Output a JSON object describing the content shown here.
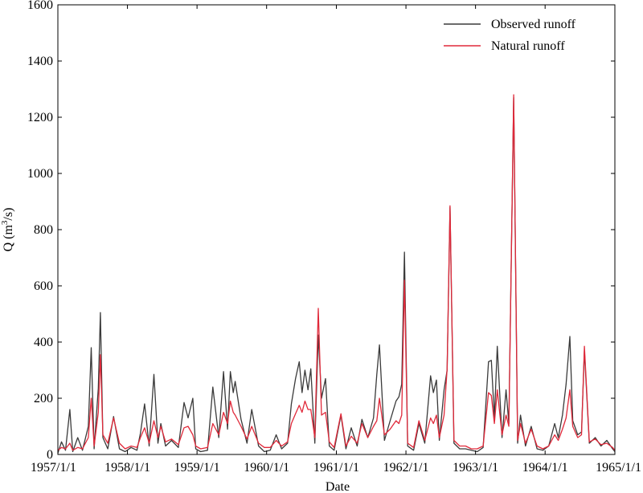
{
  "chart_data": {
    "type": "line",
    "title": "",
    "xlabel": "Date",
    "ylabel_main": "Q (m",
    "ylabel_sup": "3",
    "ylabel_tail": "/s)",
    "ylim": [
      0,
      1600
    ],
    "yticks": [
      0,
      200,
      400,
      600,
      800,
      1000,
      1200,
      1400,
      1600
    ],
    "xlim": [
      "1957-01-01",
      "1965-01-01"
    ],
    "xticks": [
      {
        "date": "1957-01-01",
        "label": "1957/1/1"
      },
      {
        "date": "1958-01-01",
        "label": "1958/1/1"
      },
      {
        "date": "1959-01-01",
        "label": "1959/1/1"
      },
      {
        "date": "1960-01-01",
        "label": "1960/1/1"
      },
      {
        "date": "1961-01-01",
        "label": "1961/1/1"
      },
      {
        "date": "1962-01-01",
        "label": "1962/1/1"
      },
      {
        "date": "1963-01-01",
        "label": "1963/1/1"
      },
      {
        "date": "1964-01-01",
        "label": "1964/1/1"
      },
      {
        "date": "1965-01-01",
        "label": "1965/1/1"
      }
    ],
    "legend_position": "top-right",
    "grid": false,
    "series": [
      {
        "name": "Observed runoff",
        "color": "#3a3a3a",
        "points": [
          [
            "1957-01-01",
            5
          ],
          [
            "1957-01-20",
            45
          ],
          [
            "1957-02-10",
            15
          ],
          [
            "1957-03-05",
            160
          ],
          [
            "1957-03-20",
            10
          ],
          [
            "1957-04-15",
            60
          ],
          [
            "1957-05-10",
            15
          ],
          [
            "1957-06-10",
            100
          ],
          [
            "1957-06-25",
            380
          ],
          [
            "1957-07-10",
            20
          ],
          [
            "1957-08-01",
            235
          ],
          [
            "1957-08-12",
            505
          ],
          [
            "1957-08-25",
            60
          ],
          [
            "1957-09-20",
            20
          ],
          [
            "1957-10-20",
            135
          ],
          [
            "1957-11-20",
            20
          ],
          [
            "1957-12-20",
            10
          ],
          [
            "1958-01-20",
            25
          ],
          [
            "1958-02-20",
            15
          ],
          [
            "1958-03-10",
            75
          ],
          [
            "1958-04-01",
            180
          ],
          [
            "1958-04-25",
            30
          ],
          [
            "1958-05-20",
            285
          ],
          [
            "1958-06-10",
            40
          ],
          [
            "1958-06-25",
            110
          ],
          [
            "1958-07-20",
            30
          ],
          [
            "1958-08-20",
            50
          ],
          [
            "1958-09-25",
            25
          ],
          [
            "1958-10-25",
            185
          ],
          [
            "1958-11-15",
            130
          ],
          [
            "1958-12-10",
            200
          ],
          [
            "1958-12-25",
            20
          ],
          [
            "1959-01-20",
            10
          ],
          [
            "1959-02-25",
            15
          ],
          [
            "1959-03-25",
            240
          ],
          [
            "1959-04-25",
            60
          ],
          [
            "1959-05-20",
            295
          ],
          [
            "1959-06-10",
            90
          ],
          [
            "1959-06-25",
            295
          ],
          [
            "1959-07-10",
            220
          ],
          [
            "1959-07-20",
            260
          ],
          [
            "1959-08-20",
            125
          ],
          [
            "1959-09-20",
            40
          ],
          [
            "1959-10-15",
            160
          ],
          [
            "1959-11-20",
            30
          ],
          [
            "1959-12-20",
            10
          ],
          [
            "1960-01-20",
            15
          ],
          [
            "1960-02-20",
            70
          ],
          [
            "1960-03-20",
            20
          ],
          [
            "1960-04-20",
            40
          ],
          [
            "1960-05-10",
            180
          ],
          [
            "1960-06-01",
            270
          ],
          [
            "1960-06-20",
            330
          ],
          [
            "1960-07-05",
            220
          ],
          [
            "1960-07-20",
            300
          ],
          [
            "1960-08-05",
            230
          ],
          [
            "1960-08-20",
            305
          ],
          [
            "1960-09-10",
            40
          ],
          [
            "1960-09-28",
            425
          ],
          [
            "1960-10-15",
            200
          ],
          [
            "1960-11-05",
            270
          ],
          [
            "1960-11-25",
            30
          ],
          [
            "1960-12-20",
            15
          ],
          [
            "1961-01-25",
            140
          ],
          [
            "1961-02-20",
            20
          ],
          [
            "1961-03-20",
            95
          ],
          [
            "1961-04-20",
            30
          ],
          [
            "1961-05-15",
            125
          ],
          [
            "1961-06-15",
            60
          ],
          [
            "1961-07-15",
            130
          ],
          [
            "1961-08-01",
            285
          ],
          [
            "1961-08-15",
            390
          ],
          [
            "1961-09-10",
            50
          ],
          [
            "1961-10-10",
            120
          ],
          [
            "1961-11-10",
            190
          ],
          [
            "1961-11-25",
            205
          ],
          [
            "1961-12-10",
            250
          ],
          [
            "1961-12-24",
            720
          ],
          [
            "1962-01-10",
            30
          ],
          [
            "1962-02-10",
            15
          ],
          [
            "1962-03-10",
            110
          ],
          [
            "1962-04-10",
            40
          ],
          [
            "1962-05-10",
            280
          ],
          [
            "1962-05-25",
            220
          ],
          [
            "1962-06-10",
            265
          ],
          [
            "1962-06-25",
            50
          ],
          [
            "1962-07-20",
            230
          ],
          [
            "1962-08-05",
            300
          ],
          [
            "1962-08-20",
            880
          ],
          [
            "1962-09-10",
            40
          ],
          [
            "1962-10-10",
            20
          ],
          [
            "1962-11-10",
            20
          ],
          [
            "1962-12-10",
            15
          ],
          [
            "1963-01-10",
            10
          ],
          [
            "1963-02-10",
            25
          ],
          [
            "1963-03-10",
            330
          ],
          [
            "1963-03-25",
            335
          ],
          [
            "1963-04-10",
            130
          ],
          [
            "1963-04-25",
            385
          ],
          [
            "1963-05-20",
            60
          ],
          [
            "1963-06-10",
            230
          ],
          [
            "1963-06-25",
            110
          ],
          [
            "1963-07-20",
            1270
          ],
          [
            "1963-08-10",
            40
          ],
          [
            "1963-08-25",
            140
          ],
          [
            "1963-09-20",
            30
          ],
          [
            "1963-10-20",
            100
          ],
          [
            "1963-11-20",
            20
          ],
          [
            "1963-12-20",
            15
          ],
          [
            "1964-01-20",
            30
          ],
          [
            "1964-02-20",
            110
          ],
          [
            "1964-03-10",
            60
          ],
          [
            "1964-04-01",
            140
          ],
          [
            "1964-04-20",
            250
          ],
          [
            "1964-05-10",
            420
          ],
          [
            "1964-05-25",
            120
          ],
          [
            "1964-06-20",
            70
          ],
          [
            "1964-07-10",
            80
          ],
          [
            "1964-07-25",
            370
          ],
          [
            "1964-08-20",
            40
          ],
          [
            "1964-09-20",
            60
          ],
          [
            "1964-10-20",
            30
          ],
          [
            "1964-11-20",
            50
          ],
          [
            "1964-12-20",
            20
          ],
          [
            "1965-01-01",
            10
          ]
        ]
      },
      {
        "name": "Natural runoff",
        "color": "#e0293a",
        "points": [
          [
            "1957-01-01",
            15
          ],
          [
            "1957-01-20",
            25
          ],
          [
            "1957-02-10",
            20
          ],
          [
            "1957-03-05",
            40
          ],
          [
            "1957-03-20",
            15
          ],
          [
            "1957-04-15",
            25
          ],
          [
            "1957-05-10",
            20
          ],
          [
            "1957-06-10",
            60
          ],
          [
            "1957-06-25",
            200
          ],
          [
            "1957-07-10",
            30
          ],
          [
            "1957-08-01",
            150
          ],
          [
            "1957-08-12",
            355
          ],
          [
            "1957-08-25",
            70
          ],
          [
            "1957-09-20",
            40
          ],
          [
            "1957-10-20",
            130
          ],
          [
            "1957-11-20",
            40
          ],
          [
            "1957-12-20",
            20
          ],
          [
            "1958-01-20",
            30
          ],
          [
            "1958-02-20",
            25
          ],
          [
            "1958-03-10",
            60
          ],
          [
            "1958-04-01",
            95
          ],
          [
            "1958-04-25",
            40
          ],
          [
            "1958-05-20",
            120
          ],
          [
            "1958-06-10",
            60
          ],
          [
            "1958-06-25",
            100
          ],
          [
            "1958-07-20",
            45
          ],
          [
            "1958-08-20",
            55
          ],
          [
            "1958-09-25",
            35
          ],
          [
            "1958-10-25",
            95
          ],
          [
            "1958-11-15",
            100
          ],
          [
            "1958-12-10",
            70
          ],
          [
            "1958-12-25",
            30
          ],
          [
            "1959-01-20",
            20
          ],
          [
            "1959-02-25",
            25
          ],
          [
            "1959-03-25",
            110
          ],
          [
            "1959-04-25",
            70
          ],
          [
            "1959-05-20",
            150
          ],
          [
            "1959-06-10",
            110
          ],
          [
            "1959-06-25",
            190
          ],
          [
            "1959-07-10",
            150
          ],
          [
            "1959-07-20",
            140
          ],
          [
            "1959-08-20",
            100
          ],
          [
            "1959-09-20",
            55
          ],
          [
            "1959-10-15",
            100
          ],
          [
            "1959-11-20",
            40
          ],
          [
            "1959-12-20",
            25
          ],
          [
            "1960-01-20",
            25
          ],
          [
            "1960-02-20",
            50
          ],
          [
            "1960-03-20",
            30
          ],
          [
            "1960-04-20",
            45
          ],
          [
            "1960-05-10",
            110
          ],
          [
            "1960-06-01",
            145
          ],
          [
            "1960-06-20",
            175
          ],
          [
            "1960-07-05",
            150
          ],
          [
            "1960-07-20",
            190
          ],
          [
            "1960-08-05",
            160
          ],
          [
            "1960-08-20",
            160
          ],
          [
            "1960-09-10",
            60
          ],
          [
            "1960-09-28",
            520
          ],
          [
            "1960-10-15",
            140
          ],
          [
            "1960-11-05",
            150
          ],
          [
            "1960-11-25",
            45
          ],
          [
            "1960-12-20",
            25
          ],
          [
            "1961-01-25",
            145
          ],
          [
            "1961-02-20",
            30
          ],
          [
            "1961-03-20",
            65
          ],
          [
            "1961-04-20",
            40
          ],
          [
            "1961-05-15",
            110
          ],
          [
            "1961-06-15",
            60
          ],
          [
            "1961-07-15",
            100
          ],
          [
            "1961-08-01",
            120
          ],
          [
            "1961-08-15",
            200
          ],
          [
            "1961-09-10",
            70
          ],
          [
            "1961-10-10",
            90
          ],
          [
            "1961-11-10",
            120
          ],
          [
            "1961-11-25",
            110
          ],
          [
            "1961-12-10",
            140
          ],
          [
            "1961-12-24",
            620
          ],
          [
            "1962-01-10",
            40
          ],
          [
            "1962-02-10",
            25
          ],
          [
            "1962-03-10",
            120
          ],
          [
            "1962-04-10",
            50
          ],
          [
            "1962-05-10",
            130
          ],
          [
            "1962-05-25",
            110
          ],
          [
            "1962-06-10",
            140
          ],
          [
            "1962-06-25",
            60
          ],
          [
            "1962-07-20",
            140
          ],
          [
            "1962-08-05",
            305
          ],
          [
            "1962-08-20",
            885
          ],
          [
            "1962-09-10",
            50
          ],
          [
            "1962-10-10",
            30
          ],
          [
            "1962-11-10",
            30
          ],
          [
            "1962-12-10",
            20
          ],
          [
            "1963-01-10",
            20
          ],
          [
            "1963-02-10",
            30
          ],
          [
            "1963-03-10",
            220
          ],
          [
            "1963-03-25",
            210
          ],
          [
            "1963-04-10",
            110
          ],
          [
            "1963-04-25",
            230
          ],
          [
            "1963-05-20",
            70
          ],
          [
            "1963-06-10",
            140
          ],
          [
            "1963-06-25",
            100
          ],
          [
            "1963-07-20",
            1280
          ],
          [
            "1963-08-10",
            50
          ],
          [
            "1963-08-25",
            110
          ],
          [
            "1963-09-20",
            40
          ],
          [
            "1963-10-20",
            90
          ],
          [
            "1963-11-20",
            30
          ],
          [
            "1963-12-20",
            20
          ],
          [
            "1964-01-20",
            30
          ],
          [
            "1964-02-20",
            70
          ],
          [
            "1964-03-10",
            50
          ],
          [
            "1964-04-01",
            90
          ],
          [
            "1964-04-20",
            130
          ],
          [
            "1964-05-10",
            230
          ],
          [
            "1964-05-25",
            100
          ],
          [
            "1964-06-20",
            60
          ],
          [
            "1964-07-10",
            70
          ],
          [
            "1964-07-25",
            385
          ],
          [
            "1964-08-20",
            45
          ],
          [
            "1964-09-20",
            55
          ],
          [
            "1964-10-20",
            35
          ],
          [
            "1964-11-20",
            40
          ],
          [
            "1964-12-20",
            25
          ],
          [
            "1965-01-01",
            15
          ]
        ]
      }
    ]
  }
}
